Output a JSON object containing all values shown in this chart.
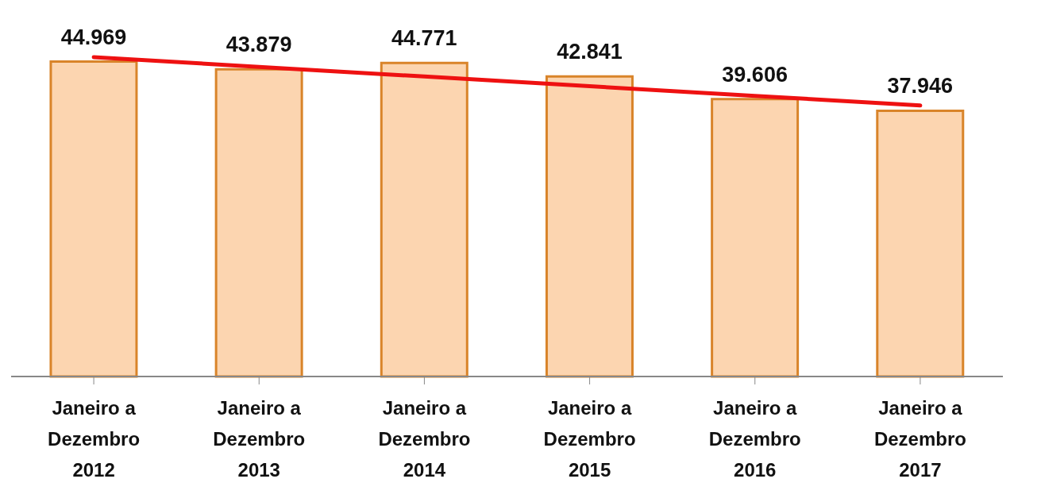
{
  "chart_data": {
    "type": "bar",
    "categories": [
      "Janeiro a\nDezembro\n2012",
      "Janeiro a\nDezembro\n2013",
      "Janeiro a\nDezembro\n2014",
      "Janeiro a\nDezembro\n2015",
      "Janeiro a\nDezembro\n2016",
      "Janeiro a\nDezembro\n2017"
    ],
    "series": [
      {
        "color": "#fcd5b0",
        "values": [
          44.969,
          43.879,
          44.771,
          42.841,
          39.606,
          37.946
        ],
        "value_labels": [
          "44.969",
          "43.879",
          "44.771",
          "42.841",
          "39.606",
          "37.946"
        ]
      },
      {
        "type": "line",
        "color": "#ee1111",
        "values": [
          45.6,
          44.22,
          42.84,
          41.46,
          40.08,
          38.7
        ]
      }
    ],
    "legend": false,
    "grid": false
  }
}
